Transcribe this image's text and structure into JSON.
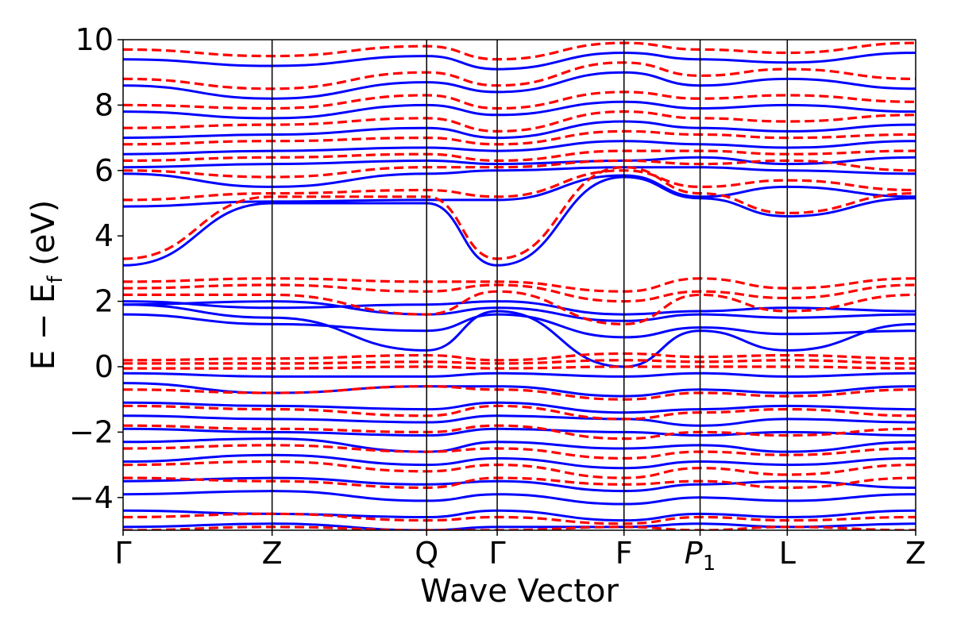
{
  "chart_data": {
    "type": "line",
    "xlabel": "Wave Vector",
    "ylabel_parts": {
      "main": "E − E",
      "sub": "f",
      "unit": " (eV)"
    },
    "ylim": [
      -5,
      10
    ],
    "y_ticks": [
      -4,
      -2,
      0,
      2,
      4,
      6,
      8,
      10
    ],
    "y_tick_labels": [
      "−4",
      "−2",
      "0",
      "2",
      "4",
      "6",
      "8",
      "10"
    ],
    "kpoints": [
      {
        "label": "Γ",
        "pos": 0.0
      },
      {
        "label": "Z",
        "pos": 0.188
      },
      {
        "label": "Q",
        "pos": 0.383
      },
      {
        "label": "Γ",
        "pos": 0.472
      },
      {
        "label": "F",
        "pos": 0.632
      },
      {
        "label": "P",
        "sub": "1",
        "italic": true,
        "pos": 0.728
      },
      {
        "label": "L",
        "pos": 0.838
      },
      {
        "label": "Z",
        "pos": 1.0
      }
    ],
    "grid": false,
    "series": [
      {
        "color": "#0000ff",
        "dash": "solid",
        "bands": [
          [
            3.1,
            5.0,
            5.0,
            3.1,
            5.8,
            5.15,
            4.6,
            5.15
          ],
          [
            4.9,
            5.05,
            5.1,
            5.1,
            5.85,
            5.2,
            5.5,
            5.2
          ],
          [
            5.9,
            5.5,
            5.9,
            6.0,
            6.1,
            6.1,
            6.0,
            5.9
          ],
          [
            6.1,
            6.2,
            6.3,
            6.2,
            6.3,
            6.4,
            6.2,
            6.4
          ],
          [
            6.5,
            6.6,
            6.7,
            6.6,
            6.9,
            6.8,
            6.7,
            6.9
          ],
          [
            7.0,
            7.1,
            7.3,
            7.0,
            7.5,
            7.3,
            7.2,
            7.4
          ],
          [
            7.8,
            7.6,
            8.0,
            7.7,
            8.1,
            7.9,
            8.0,
            7.8
          ],
          [
            8.6,
            8.2,
            8.7,
            8.4,
            9.0,
            8.6,
            8.8,
            8.5
          ],
          [
            9.4,
            9.2,
            9.5,
            9.1,
            9.6,
            9.4,
            9.3,
            9.6
          ],
          [
            2.0,
            1.8,
            1.9,
            2.0,
            1.6,
            1.7,
            1.8,
            1.7
          ],
          [
            1.9,
            2.0,
            1.6,
            1.8,
            1.4,
            1.6,
            1.5,
            1.6
          ],
          [
            1.6,
            1.3,
            1.1,
            1.6,
            0.9,
            1.2,
            1.0,
            1.1
          ],
          [
            1.9,
            1.5,
            0.5,
            1.7,
            0.0,
            1.1,
            0.5,
            1.3
          ],
          [
            -0.2,
            -0.3,
            -0.3,
            -0.2,
            -0.3,
            -0.2,
            -0.3,
            -0.2
          ],
          [
            -0.5,
            -0.8,
            -0.6,
            -0.6,
            -0.9,
            -0.7,
            -0.8,
            -0.6
          ],
          [
            -1.1,
            -1.2,
            -1.3,
            -1.1,
            -1.4,
            -1.3,
            -1.2,
            -1.3
          ],
          [
            -1.5,
            -1.6,
            -1.7,
            -1.5,
            -1.6,
            -1.8,
            -1.6,
            -1.7
          ],
          [
            -1.9,
            -2.0,
            -2.1,
            -1.9,
            -2.0,
            -2.1,
            -2.0,
            -2.1
          ],
          [
            -2.3,
            -2.2,
            -2.6,
            -2.3,
            -2.5,
            -2.4,
            -2.6,
            -2.3
          ],
          [
            -2.9,
            -2.7,
            -3.0,
            -2.8,
            -3.1,
            -2.9,
            -3.0,
            -2.8
          ],
          [
            -3.5,
            -3.4,
            -3.6,
            -3.5,
            -3.8,
            -3.6,
            -3.5,
            -3.7
          ],
          [
            -3.9,
            -3.8,
            -4.1,
            -3.9,
            -4.2,
            -4.0,
            -4.1,
            -3.9
          ],
          [
            -4.4,
            -4.5,
            -4.6,
            -4.4,
            -4.7,
            -4.5,
            -4.6,
            -4.4
          ],
          [
            -4.9,
            -4.8,
            -5.0,
            -4.9,
            -4.9,
            -4.8,
            -4.9,
            -4.8
          ]
        ]
      },
      {
        "color": "#ff0000",
        "dash": "dashed",
        "bands": [
          [
            3.3,
            5.2,
            5.2,
            3.3,
            6.1,
            5.3,
            4.7,
            5.3
          ],
          [
            5.1,
            5.3,
            5.4,
            5.2,
            6.0,
            5.5,
            5.7,
            5.4
          ],
          [
            6.0,
            5.8,
            6.1,
            6.1,
            6.3,
            6.2,
            6.3,
            6.0
          ],
          [
            6.3,
            6.4,
            6.5,
            6.3,
            6.6,
            6.6,
            6.5,
            6.6
          ],
          [
            6.8,
            6.9,
            7.0,
            6.8,
            7.2,
            7.1,
            7.0,
            7.1
          ],
          [
            7.3,
            7.4,
            7.6,
            7.2,
            7.8,
            7.6,
            7.5,
            7.7
          ],
          [
            8.0,
            7.9,
            8.3,
            7.9,
            8.4,
            8.2,
            8.3,
            8.1
          ],
          [
            8.8,
            8.5,
            9.0,
            8.6,
            9.3,
            8.9,
            9.1,
            8.8
          ],
          [
            9.7,
            9.5,
            9.8,
            9.4,
            9.9,
            9.7,
            9.6,
            9.9
          ],
          [
            2.6,
            2.7,
            2.6,
            2.6,
            2.3,
            2.7,
            2.4,
            2.7
          ],
          [
            2.4,
            2.5,
            2.3,
            2.5,
            2.0,
            2.3,
            2.1,
            2.5
          ],
          [
            2.2,
            2.2,
            1.6,
            2.3,
            1.3,
            2.2,
            1.7,
            2.2
          ],
          [
            0.2,
            0.25,
            0.35,
            0.2,
            0.4,
            0.3,
            0.35,
            0.25
          ],
          [
            0.1,
            0.1,
            0.15,
            0.1,
            0.2,
            0.15,
            0.2,
            0.1
          ],
          [
            -0.05,
            -0.05,
            0.0,
            -0.05,
            0.0,
            0.0,
            0.0,
            -0.05
          ],
          [
            -0.7,
            -0.8,
            -0.6,
            -0.7,
            -1.0,
            -0.8,
            -0.9,
            -0.7
          ],
          [
            -1.2,
            -1.3,
            -1.5,
            -1.2,
            -1.6,
            -1.4,
            -1.3,
            -1.5
          ],
          [
            -1.8,
            -1.9,
            -2.0,
            -1.8,
            -2.2,
            -2.0,
            -2.1,
            -1.9
          ],
          [
            -2.5,
            -2.4,
            -2.6,
            -2.5,
            -2.8,
            -2.6,
            -2.7,
            -2.5
          ],
          [
            -3.0,
            -2.9,
            -3.2,
            -3.0,
            -3.4,
            -3.1,
            -3.3,
            -3.0
          ],
          [
            -3.4,
            -3.5,
            -3.7,
            -3.4,
            -3.6,
            -3.5,
            -3.7,
            -3.4
          ],
          [
            -4.6,
            -4.5,
            -4.7,
            -4.6,
            -4.8,
            -4.6,
            -4.7,
            -4.6
          ],
          [
            -5.0,
            -4.9,
            -5.0,
            -5.0,
            -4.9,
            -5.0,
            -4.9,
            -5.0
          ]
        ]
      }
    ]
  }
}
